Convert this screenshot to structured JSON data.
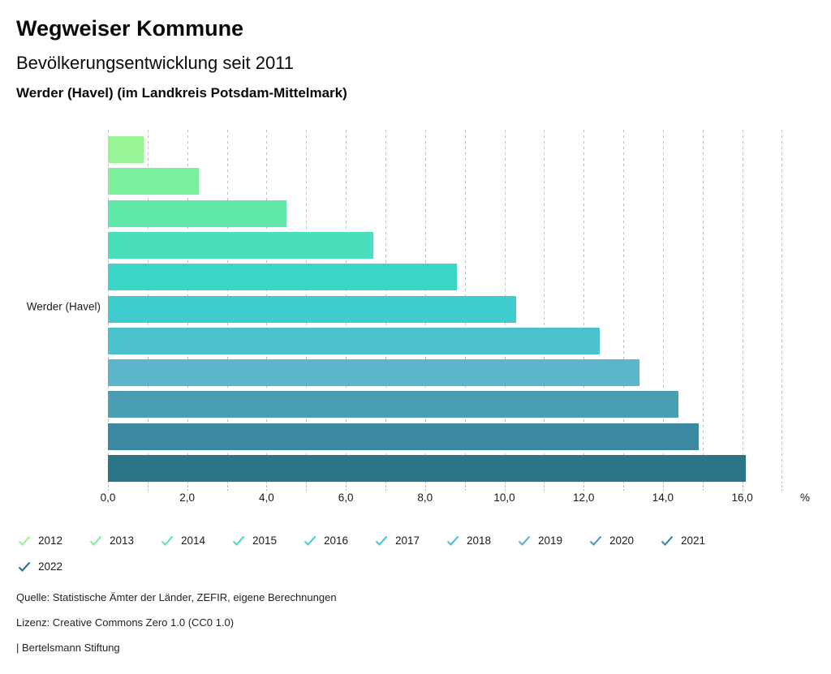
{
  "header": {
    "title": "Wegweiser Kommune",
    "subtitle": "Bevölkerungsentwicklung seit 2011",
    "region": "Werder (Havel) (im Landkreis Potsdam-Mittelmark)"
  },
  "chart_data": {
    "type": "bar",
    "orientation": "horizontal",
    "title": "Bevölkerungsentwicklung seit 2011",
    "group_label": "Werder (Havel)",
    "unit": "%",
    "xlim": [
      0,
      17
    ],
    "grid": "vertical-dashed",
    "gridline_interval": 1.0,
    "x_ticks": [
      "0,0",
      "2,0",
      "4,0",
      "6,0",
      "8,0",
      "10,0",
      "12,0",
      "14,0",
      "16,0"
    ],
    "x_tick_values": [
      0,
      2,
      4,
      6,
      8,
      10,
      12,
      14,
      16
    ],
    "legend_position": "bottom",
    "legend_check_glyph": "check",
    "series": [
      {
        "name": "2012",
        "value": 0.9,
        "color": "#98F595"
      },
      {
        "name": "2013",
        "value": 2.3,
        "color": "#7BEF9C"
      },
      {
        "name": "2014",
        "value": 4.5,
        "color": "#5FE8A8"
      },
      {
        "name": "2015",
        "value": 6.7,
        "color": "#49DFBD"
      },
      {
        "name": "2016",
        "value": 8.8,
        "color": "#3DD6C6"
      },
      {
        "name": "2017",
        "value": 10.3,
        "color": "#3FCCCD"
      },
      {
        "name": "2018",
        "value": 12.4,
        "color": "#4AC1CD"
      },
      {
        "name": "2019",
        "value": 13.4,
        "color": "#5CB6C9"
      },
      {
        "name": "2020",
        "value": 14.4,
        "color": "#499EB1"
      },
      {
        "name": "2021",
        "value": 14.9,
        "color": "#3A89A0"
      },
      {
        "name": "2022",
        "value": 16.1,
        "color": "#2A7587"
      }
    ]
  },
  "footer": {
    "source": "Quelle: Statistische Ämter der Länder, ZEFIR, eigene Berechnungen",
    "license": "Lizenz: Creative Commons Zero 1.0 (CC0 1.0)",
    "attribution": "| Bertelsmann Stiftung"
  }
}
